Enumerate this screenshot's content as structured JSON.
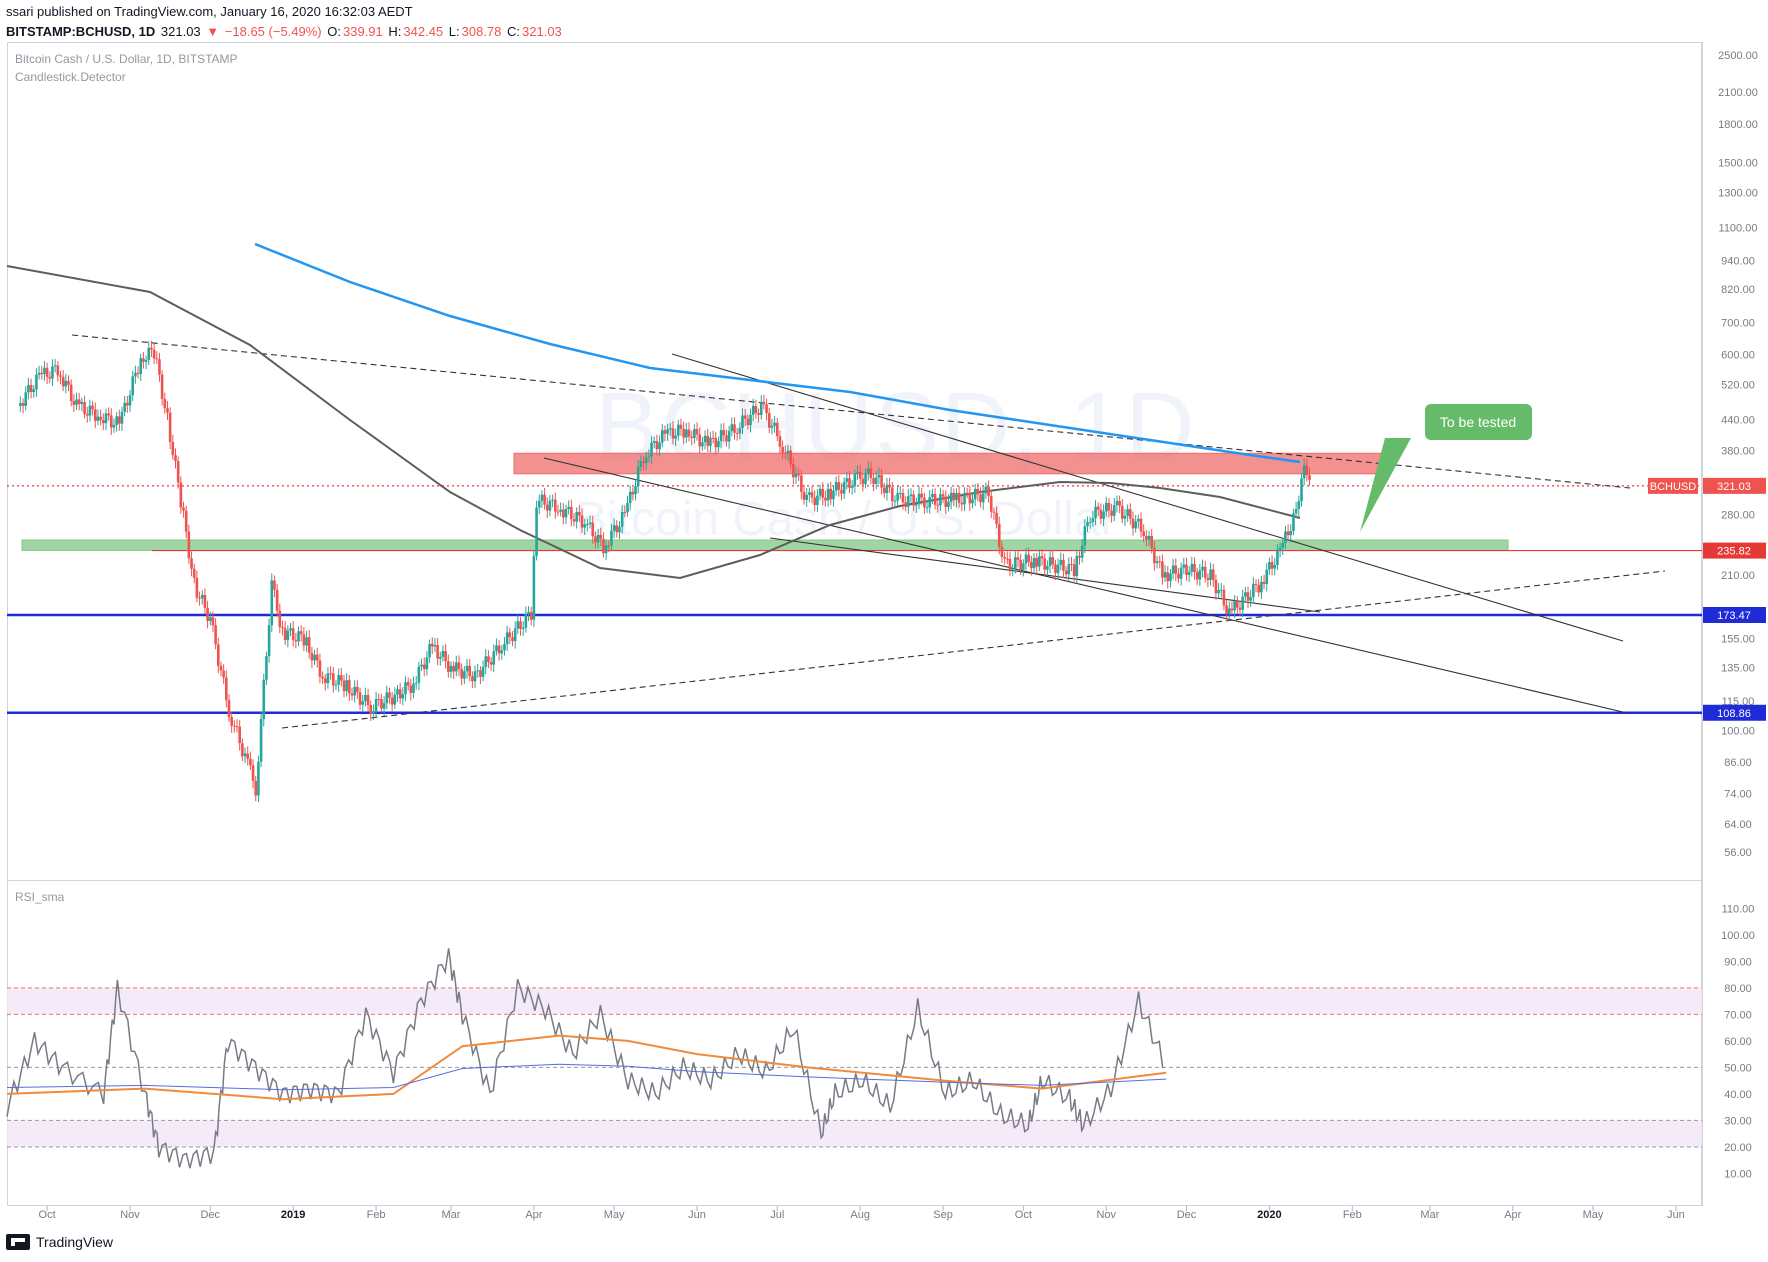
{
  "header": {
    "published": "ssari published on TradingView.com, January 16, 2020 16:32:03 AEDT",
    "symbol": "BITSTAMP:BCHUSD, 1D",
    "last": "321.03",
    "change": "−18.65 (−5.49%)",
    "o_label": "O:",
    "o": "339.91",
    "h_label": "H:",
    "h": "342.45",
    "l_label": "L:",
    "l": "308.78",
    "c_label": "C:",
    "c": "321.03"
  },
  "legend": {
    "title": "Bitcoin Cash / U.S. Dollar, 1D, BITSTAMP",
    "indicator": "Candlestick.Detector",
    "rsi": "RSI_sma"
  },
  "watermark": {
    "big": "BCHUSD, 1D",
    "small": "Bitcoin Cash / U.S. Dollar"
  },
  "annotation": {
    "text": "To be tested"
  },
  "footer": {
    "brand": "TradingView"
  },
  "colors": {
    "up": "#26a69a",
    "down": "#ef5350",
    "ma_blue": "#2196f3",
    "ma_gray": "#5d5d5d",
    "support": "#1f2bd6",
    "resistance_zone": "#ef6c6c",
    "green_zone": "#81c784",
    "annotation": "#66bb6a",
    "rsi": "#787b86",
    "rsi_ma": "#f08a3c",
    "rsi_ma2": "#5b6bd8"
  },
  "chart_data": [
    {
      "type": "candlestick",
      "title": "Bitcoin Cash / U.S. Dollar, 1D, BITSTAMP",
      "y_scale": "log",
      "y_ticks": [
        "2500.00",
        "2100.00",
        "1800.00",
        "1500.00",
        "1300.00",
        "1100.00",
        "940.00",
        "820.00",
        "700.00",
        "600.00",
        "520.00",
        "440.00",
        "380.00",
        "280.00",
        "210.00",
        "155.00",
        "135.00",
        "115.00",
        "100.00",
        "86.00",
        "74.00",
        "64.00",
        "56.00"
      ],
      "x_ticks": [
        "Oct",
        "Nov",
        "Dec",
        "2019",
        "Feb",
        "Mar",
        "Apr",
        "May",
        "Jun",
        "Jul",
        "Aug",
        "Sep",
        "Oct",
        "Nov",
        "Dec",
        "2020",
        "Feb",
        "Mar",
        "Apr",
        "May",
        "Jun"
      ],
      "price_labels": [
        {
          "text": "BCHUSD",
          "value": "321.03"
        },
        {
          "text": "235.82"
        },
        {
          "text": "173.47"
        },
        {
          "text": "108.86"
        }
      ],
      "series_path": [
        [
          "2018-09-20",
          470
        ],
        [
          "2018-09-28",
          540
        ],
        [
          "2018-10-05",
          560
        ],
        [
          "2018-10-12",
          470
        ],
        [
          "2018-10-20",
          450
        ],
        [
          "2018-10-28",
          430
        ],
        [
          "2018-11-05",
          590
        ],
        [
          "2018-11-10",
          610
        ],
        [
          "2018-11-15",
          440
        ],
        [
          "2018-11-20",
          300
        ],
        [
          "2018-11-25",
          200
        ],
        [
          "2018-12-01",
          170
        ],
        [
          "2018-12-08",
          110
        ],
        [
          "2018-12-15",
          85
        ],
        [
          "2018-12-18",
          76
        ],
        [
          "2018-12-24",
          200
        ],
        [
          "2018-12-28",
          160
        ],
        [
          "2019-01-05",
          155
        ],
        [
          "2019-01-12",
          130
        ],
        [
          "2019-01-20",
          125
        ],
        [
          "2019-01-30",
          112
        ],
        [
          "2019-02-08",
          118
        ],
        [
          "2019-02-15",
          125
        ],
        [
          "2019-02-22",
          150
        ],
        [
          "2019-03-01",
          135
        ],
        [
          "2019-03-10",
          130
        ],
        [
          "2019-03-20",
          150
        ],
        [
          "2019-03-31",
          175
        ],
        [
          "2019-04-02",
          300
        ],
        [
          "2019-04-10",
          290
        ],
        [
          "2019-04-20",
          270
        ],
        [
          "2019-04-27",
          240
        ],
        [
          "2019-05-05",
          280
        ],
        [
          "2019-05-12",
          370
        ],
        [
          "2019-05-20",
          410
        ],
        [
          "2019-05-28",
          420
        ],
        [
          "2019-06-05",
          390
        ],
        [
          "2019-06-15",
          420
        ],
        [
          "2019-06-25",
          470
        ],
        [
          "2019-07-02",
          400
        ],
        [
          "2019-07-12",
          300
        ],
        [
          "2019-07-20",
          310
        ],
        [
          "2019-07-30",
          330
        ],
        [
          "2019-08-05",
          340
        ],
        [
          "2019-08-15",
          300
        ],
        [
          "2019-08-25",
          300
        ],
        [
          "2019-09-05",
          300
        ],
        [
          "2019-09-18",
          310
        ],
        [
          "2019-09-24",
          220
        ],
        [
          "2019-10-05",
          225
        ],
        [
          "2019-10-20",
          215
        ],
        [
          "2019-10-26",
          280
        ],
        [
          "2019-11-05",
          290
        ],
        [
          "2019-11-15",
          260
        ],
        [
          "2019-11-22",
          210
        ],
        [
          "2019-12-01",
          215
        ],
        [
          "2019-12-10",
          210
        ],
        [
          "2019-12-17",
          175
        ],
        [
          "2019-12-28",
          200
        ],
        [
          "2020-01-05",
          235
        ],
        [
          "2020-01-10",
          275
        ],
        [
          "2020-01-14",
          345
        ],
        [
          "2020-01-16",
          321
        ]
      ],
      "horizontal_levels": [
        {
          "value": 235.82,
          "style": "solid",
          "color": "red"
        },
        {
          "value": 173.47,
          "style": "solid",
          "color": "blue"
        },
        {
          "value": 108.86,
          "style": "solid",
          "color": "blue"
        },
        {
          "value": 321.03,
          "style": "dotted",
          "color": "red"
        }
      ],
      "zones": [
        {
          "name": "resistance",
          "from": 340,
          "to": 375
        },
        {
          "name": "support",
          "from": 236,
          "to": 248
        }
      ]
    },
    {
      "type": "line",
      "title": "RSI_sma",
      "y_ticks": [
        "110.00",
        "100.00",
        "90.00",
        "80.00",
        "70.00",
        "60.00",
        "50.00",
        "40.00",
        "30.00",
        "20.00",
        "10.00"
      ],
      "bands": [
        {
          "from": 70,
          "to": 80
        },
        {
          "from": 20,
          "to": 30
        }
      ],
      "levels": [
        80,
        70,
        50,
        30,
        20
      ],
      "series": [
        {
          "values": [
            [
              0,
              35
            ],
            [
              0.02,
              60
            ],
            [
              0.04,
              50
            ],
            [
              0.07,
              40
            ],
            [
              0.08,
              80
            ],
            [
              0.1,
              40
            ],
            [
              0.11,
              20
            ],
            [
              0.13,
              15
            ],
            [
              0.15,
              18
            ],
            [
              0.16,
              60
            ],
            [
              0.18,
              50
            ],
            [
              0.2,
              40
            ],
            [
              0.22,
              42
            ],
            [
              0.24,
              40
            ],
            [
              0.26,
              70
            ],
            [
              0.28,
              48
            ],
            [
              0.3,
              75
            ],
            [
              0.32,
              92
            ],
            [
              0.33,
              70
            ],
            [
              0.35,
              40
            ],
            [
              0.37,
              80
            ],
            [
              0.39,
              72
            ],
            [
              0.41,
              55
            ],
            [
              0.43,
              70
            ],
            [
              0.45,
              45
            ],
            [
              0.47,
              40
            ],
            [
              0.49,
              50
            ],
            [
              0.51,
              45
            ],
            [
              0.53,
              55
            ],
            [
              0.55,
              48
            ],
            [
              0.57,
              65
            ],
            [
              0.59,
              25
            ],
            [
              0.6,
              40
            ],
            [
              0.62,
              45
            ],
            [
              0.64,
              35
            ],
            [
              0.66,
              72
            ],
            [
              0.68,
              40
            ],
            [
              0.7,
              45
            ],
            [
              0.72,
              32
            ],
            [
              0.74,
              28
            ],
            [
              0.75,
              45
            ],
            [
              0.77,
              38
            ],
            [
              0.78,
              28
            ],
            [
              0.8,
              42
            ],
            [
              0.82,
              75
            ],
            [
              0.84,
              50
            ]
          ]
        },
        {
          "values": [
            [
              0,
              40
            ],
            [
              0.1,
              42
            ],
            [
              0.2,
              38
            ],
            [
              0.28,
              40
            ],
            [
              0.33,
              58
            ],
            [
              0.4,
              62
            ],
            [
              0.45,
              60
            ],
            [
              0.5,
              55
            ],
            [
              0.58,
              50
            ],
            [
              0.68,
              45
            ],
            [
              0.75,
              42
            ],
            [
              0.84,
              48
            ]
          ]
        }
      ]
    }
  ]
}
